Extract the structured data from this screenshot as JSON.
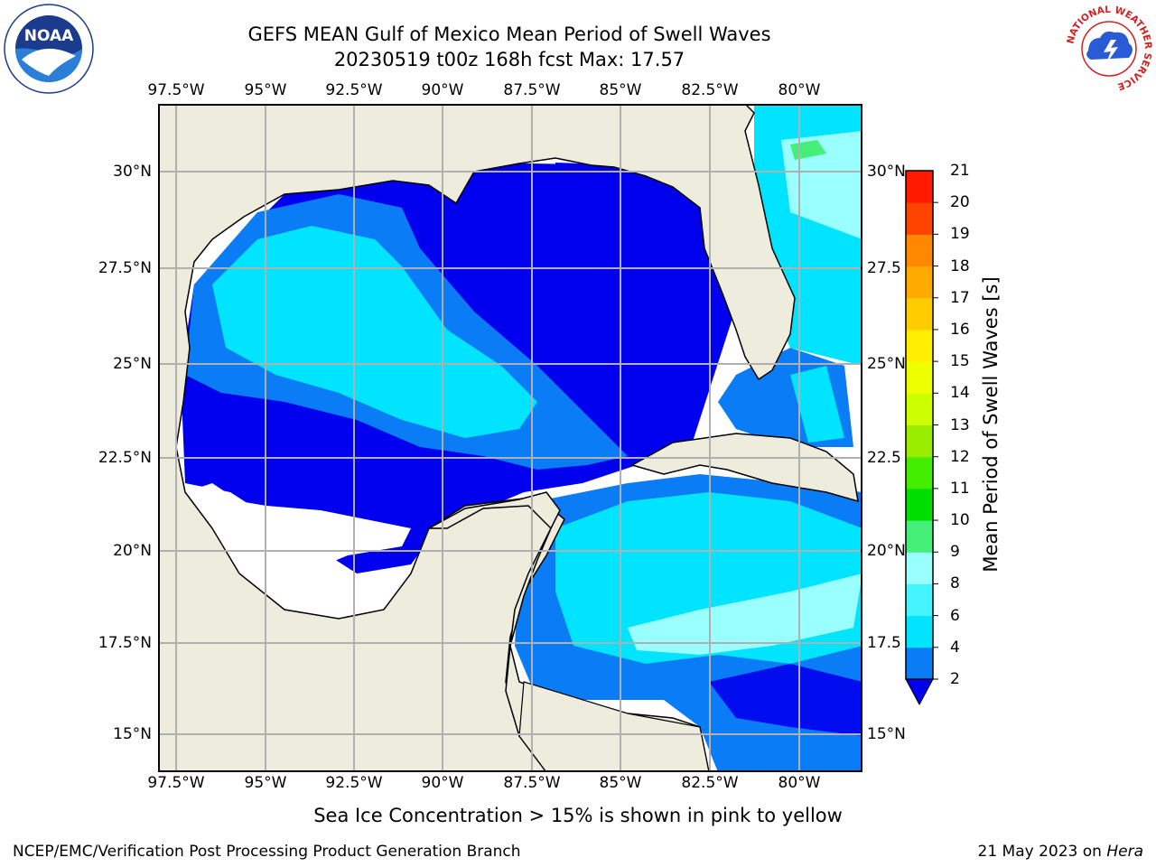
{
  "header": {
    "title_line1": "GEFS MEAN Gulf of Mexico Mean Period of Swell Waves",
    "title_line2": "20230519 t00z 168h fcst   Max: 17.57"
  },
  "logos": {
    "left": {
      "name": "noaa-logo",
      "text": "NOAA"
    },
    "right": {
      "name": "national-weather-service-logo",
      "text": "NATIONAL WEATHER SERVICE"
    }
  },
  "map": {
    "longitude_labels": [
      "97.5°W",
      "95°W",
      "92.5°W",
      "90°W",
      "87.5°W",
      "85°W",
      "82.5°W",
      "80°W"
    ],
    "latitude_labels_left": [
      "30°N",
      "27.5°N",
      "25°N",
      "22.5°N",
      "20°N",
      "17.5°N",
      "15°N"
    ],
    "latitude_labels_right": [
      "30°N",
      "27.5",
      "25°N",
      "22.5",
      "20°N",
      "17.5",
      "15°N"
    ],
    "colors": {
      "land": "#eeecdc",
      "no_data": "#ffffff",
      "grid": "#b0b0b0"
    }
  },
  "colorbar": {
    "label": "Mean Period of Swell Waves [s]",
    "ticks": [
      "2",
      "4",
      "6",
      "8",
      "9",
      "10",
      "11",
      "12",
      "13",
      "14",
      "15",
      "16",
      "17",
      "18",
      "19",
      "20",
      "21"
    ],
    "colors": [
      "#0000ee",
      "#0a7cf5",
      "#00e4ff",
      "#44f4ff",
      "#99ffff",
      "#44ee77",
      "#00dd00",
      "#44ee00",
      "#99ee00",
      "#ccff00",
      "#eeff00",
      "#ffee00",
      "#ffcc00",
      "#ffaa00",
      "#ff8800",
      "#ff4400",
      "#ff1a00"
    ],
    "under_color": "#0000ee"
  },
  "caption": "Sea Ice Concentration > 15% is shown in pink to yellow",
  "footer": {
    "left": "NCEP/EMC/Verification Post Processing Product Generation Branch",
    "right_date": "21 May 2023 on ",
    "right_machine": "Hera"
  }
}
